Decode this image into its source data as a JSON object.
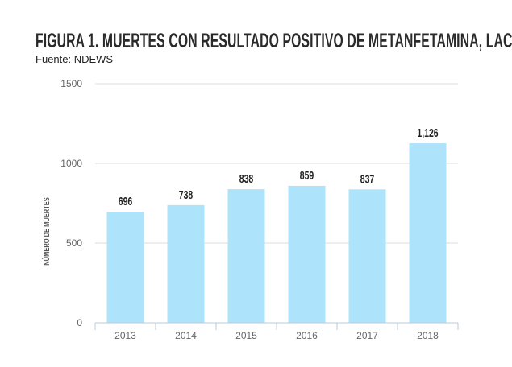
{
  "chart_data": {
    "type": "bar",
    "title": "FIGURA 1. MUERTES CON RESULTADO POSITIVO DE METANFETAMINA, LAC",
    "subtitle": "Fuente: NDEWS",
    "xlabel": "",
    "ylabel": "NÚMERO DE MUERTES",
    "categories": [
      "2013",
      "2014",
      "2015",
      "2016",
      "2017",
      "2018"
    ],
    "values": [
      696,
      738,
      838,
      859,
      837,
      1126
    ],
    "data_labels": [
      "696",
      "738",
      "838",
      "859",
      "837",
      "1,126"
    ],
    "ylim": [
      0,
      1500
    ],
    "yticks": [
      0,
      500,
      1000,
      1500
    ],
    "grid": true,
    "colors": {
      "bar": "#aee4fb",
      "grid": "#dddddd",
      "axis": "#b8c8d8"
    }
  }
}
